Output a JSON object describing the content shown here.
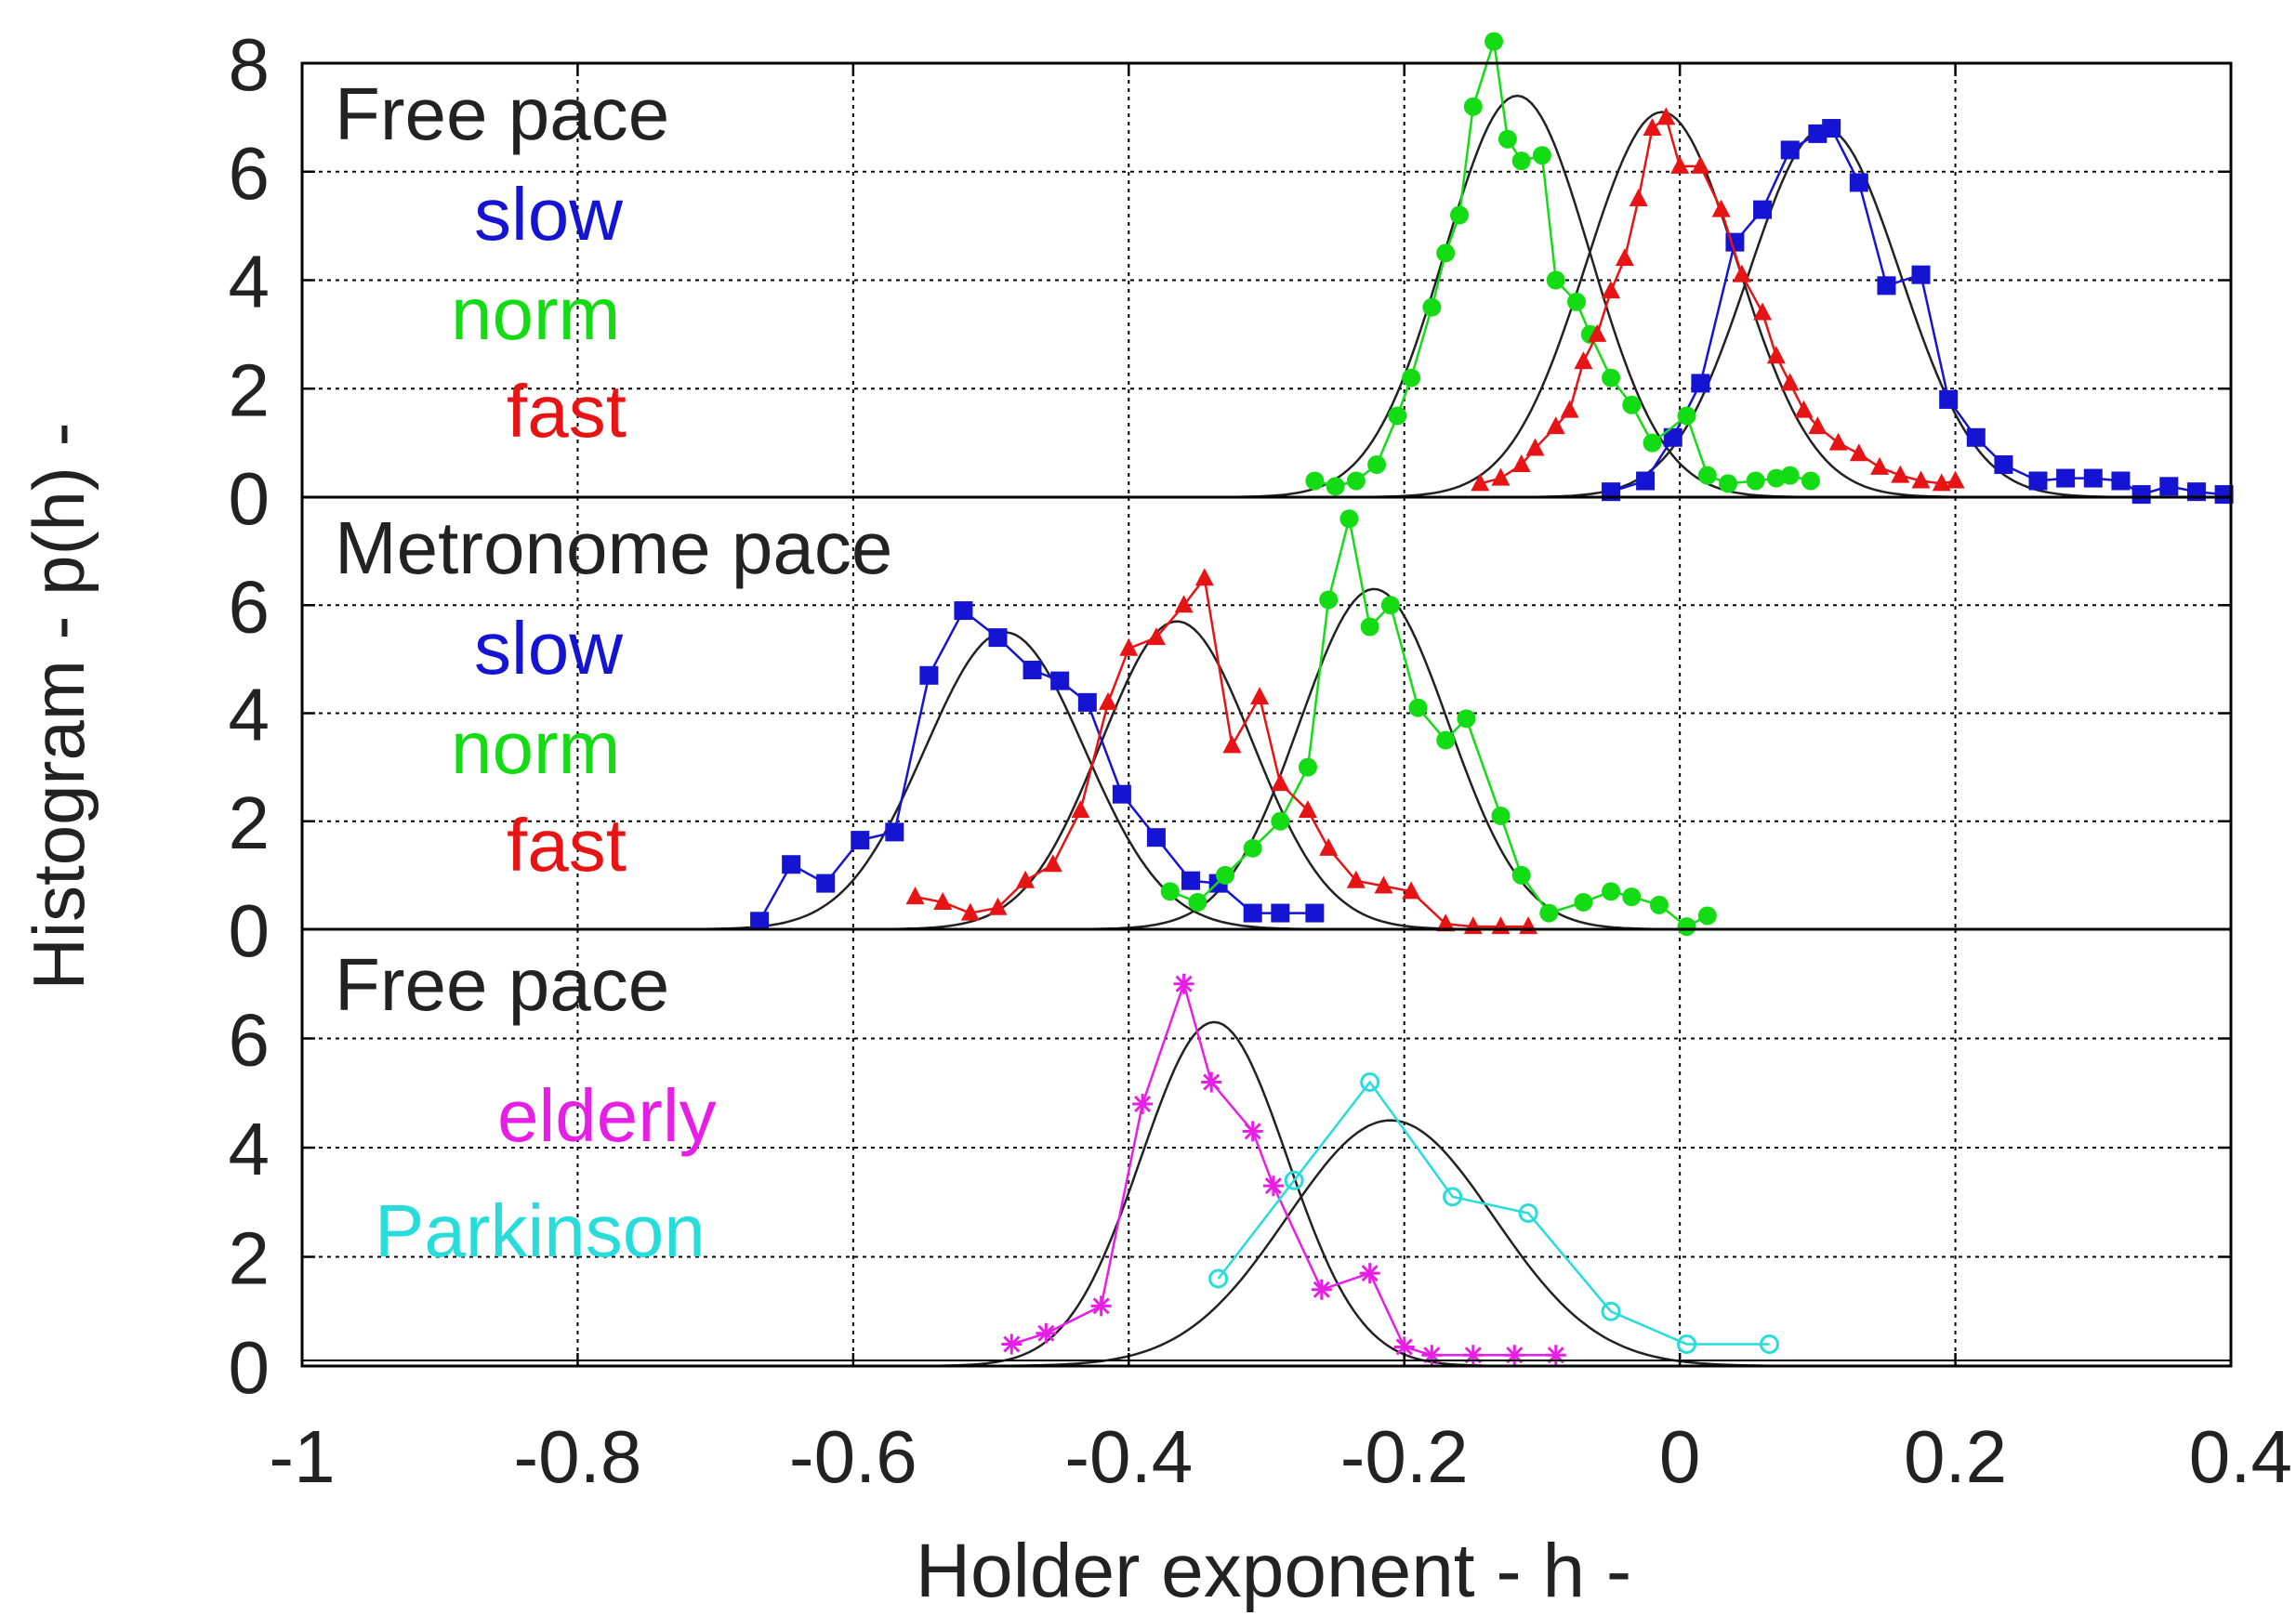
{
  "chart_data": {
    "type": "line",
    "xlabel": "Holder exponent  - h -",
    "ylabel": "Histogram  - p(h) -",
    "xlim": [
      -1,
      0.4
    ],
    "x_ticks": [
      -1,
      -0.8,
      -0.6,
      -0.4,
      -0.2,
      0,
      0.2,
      0.4
    ],
    "x_tick_labels": [
      "-1",
      "-0.8",
      "-0.6",
      "-0.4",
      "-0.2",
      "0",
      "0.2",
      "0.4"
    ],
    "grid": true,
    "panels": [
      {
        "title": "Free pace",
        "ylim": [
          0,
          8
        ],
        "y_ticks": [
          0,
          2,
          4,
          6,
          8
        ],
        "y_tick_labels": [
          "0",
          "2",
          "4",
          "6",
          "8"
        ],
        "legend": [
          {
            "label": "slow",
            "color": "#1414d2"
          },
          {
            "label": "norm",
            "color": "#14dc14"
          },
          {
            "label": "fast",
            "color": "#e61414"
          }
        ],
        "series": [
          {
            "name": "slow",
            "color": "#1414d2",
            "marker": "square",
            "x": [
              -0.05,
              -0.025,
              -0.005,
              0.015,
              0.04,
              0.06,
              0.08,
              0.1,
              0.11,
              0.13,
              0.15,
              0.175,
              0.195,
              0.215,
              0.235,
              0.26,
              0.28,
              0.3,
              0.32,
              0.335,
              0.355,
              0.375,
              0.395
            ],
            "y": [
              0.1,
              0.3,
              1.1,
              2.1,
              4.7,
              5.3,
              6.4,
              6.7,
              6.8,
              5.8,
              3.9,
              4.1,
              1.8,
              1.1,
              0.6,
              0.3,
              0.35,
              0.35,
              0.3,
              0.05,
              0.2,
              0.1,
              0.05
            ]
          },
          {
            "name": "norm",
            "color": "#14dc14",
            "marker": "circle",
            "x": [
              -0.265,
              -0.25,
              -0.235,
              -0.22,
              -0.205,
              -0.195,
              -0.18,
              -0.17,
              -0.16,
              -0.15,
              -0.135,
              -0.125,
              -0.115,
              -0.1,
              -0.09,
              -0.075,
              -0.065,
              -0.05,
              -0.035,
              -0.02,
              0.005,
              0.02,
              0.035,
              0.055,
              0.07,
              0.08,
              0.095
            ],
            "y": [
              0.3,
              0.2,
              0.3,
              0.6,
              1.5,
              2.2,
              3.5,
              4.5,
              5.2,
              7.2,
              8.4,
              6.6,
              6.2,
              6.3,
              4.0,
              3.6,
              3.0,
              2.2,
              1.7,
              1.0,
              1.5,
              0.4,
              0.25,
              0.3,
              0.35,
              0.4,
              0.3
            ]
          },
          {
            "name": "fast",
            "color": "#e61414",
            "marker": "triangle",
            "x": [
              -0.145,
              -0.13,
              -0.115,
              -0.105,
              -0.09,
              -0.08,
              -0.07,
              -0.06,
              -0.05,
              -0.04,
              -0.03,
              -0.02,
              -0.01,
              0.0,
              0.015,
              0.03,
              0.045,
              0.06,
              0.07,
              0.08,
              0.09,
              0.1,
              0.115,
              0.13,
              0.145,
              0.16,
              0.175,
              0.19,
              0.2
            ],
            "y": [
              0.25,
              0.35,
              0.6,
              0.9,
              1.3,
              1.6,
              2.5,
              3.0,
              3.8,
              4.4,
              5.5,
              6.8,
              7.0,
              6.1,
              6.1,
              5.3,
              4.1,
              3.4,
              2.6,
              2.1,
              1.6,
              1.3,
              1.0,
              0.8,
              0.55,
              0.4,
              0.3,
              0.25,
              0.3
            ]
          }
        ],
        "fits": [
          {
            "name": "norm fit",
            "color": "#222222",
            "mu": -0.118,
            "sigma": 0.053,
            "amp": 7.4
          },
          {
            "name": "fast fit",
            "color": "#222222",
            "mu": -0.013,
            "sigma": 0.055,
            "amp": 7.1
          },
          {
            "name": "slow fit",
            "color": "#222222",
            "mu": 0.105,
            "sigma": 0.055,
            "amp": 6.8
          }
        ]
      },
      {
        "title": "Metronome pace",
        "ylim": [
          0,
          8
        ],
        "y_ticks": [
          0,
          2,
          4,
          6
        ],
        "y_tick_labels": [
          "0",
          "2",
          "4",
          "6"
        ],
        "legend": [
          {
            "label": "slow",
            "color": "#1414d2"
          },
          {
            "label": "norm",
            "color": "#14dc14"
          },
          {
            "label": "fast",
            "color": "#e61414"
          }
        ],
        "series": [
          {
            "name": "slow",
            "color": "#1414d2",
            "marker": "square",
            "x": [
              -0.668,
              -0.645,
              -0.62,
              -0.595,
              -0.57,
              -0.545,
              -0.52,
              -0.495,
              -0.47,
              -0.45,
              -0.43,
              -0.405,
              -0.38,
              -0.355,
              -0.335,
              -0.31,
              -0.29,
              -0.265
            ],
            "y": [
              0.15,
              1.2,
              0.85,
              1.65,
              1.8,
              4.7,
              5.9,
              5.4,
              4.8,
              4.6,
              4.2,
              2.5,
              1.7,
              0.9,
              0.85,
              0.3,
              0.3,
              0.3
            ]
          },
          {
            "name": "norm",
            "color": "#14dc14",
            "marker": "circle",
            "x": [
              -0.37,
              -0.35,
              -0.33,
              -0.31,
              -0.29,
              -0.27,
              -0.255,
              -0.24,
              -0.225,
              -0.21,
              -0.19,
              -0.17,
              -0.155,
              -0.13,
              -0.115,
              -0.095,
              -0.07,
              -0.05,
              -0.035,
              -0.015,
              0.005,
              0.02
            ],
            "y": [
              0.7,
              0.5,
              1.0,
              1.5,
              2.0,
              3.0,
              6.1,
              7.6,
              5.6,
              6.0,
              4.1,
              3.5,
              3.9,
              2.1,
              1.0,
              0.3,
              0.5,
              0.7,
              0.6,
              0.45,
              0.05,
              0.25
            ]
          },
          {
            "name": "fast",
            "color": "#e61414",
            "marker": "triangle",
            "x": [
              -0.555,
              -0.535,
              -0.515,
              -0.495,
              -0.475,
              -0.455,
              -0.435,
              -0.415,
              -0.4,
              -0.38,
              -0.36,
              -0.345,
              -0.325,
              -0.305,
              -0.29,
              -0.27,
              -0.255,
              -0.235,
              -0.215,
              -0.195,
              -0.17,
              -0.15,
              -0.13,
              -0.11
            ],
            "y": [
              0.6,
              0.5,
              0.3,
              0.4,
              0.9,
              1.2,
              2.2,
              4.2,
              5.2,
              5.4,
              6.0,
              6.5,
              3.4,
              4.3,
              2.7,
              2.2,
              1.5,
              0.9,
              0.8,
              0.7,
              0.1,
              0.05,
              0.05,
              0.05
            ]
          }
        ],
        "fits": [
          {
            "name": "slow fit",
            "color": "#222222",
            "mu": -0.49,
            "sigma": 0.058,
            "amp": 5.5
          },
          {
            "name": "fast fit",
            "color": "#222222",
            "mu": -0.365,
            "sigma": 0.055,
            "amp": 5.7
          },
          {
            "name": "norm fit",
            "color": "#222222",
            "mu": -0.222,
            "sigma": 0.054,
            "amp": 6.3
          }
        ]
      },
      {
        "title": "Free pace",
        "ylim": [
          0,
          8
        ],
        "y_ticks": [
          0,
          2,
          4,
          6
        ],
        "y_tick_labels": [
          "0",
          "2",
          "4",
          "6"
        ],
        "legend": [
          {
            "label": "elderly",
            "color": "#e61ee6"
          },
          {
            "label": "Parkinson",
            "color": "#28dcdc"
          }
        ],
        "series": [
          {
            "name": "elderly",
            "color": "#e61ee6",
            "marker": "star",
            "x": [
              -0.485,
              -0.46,
              -0.42,
              -0.39,
              -0.36,
              -0.34,
              -0.31,
              -0.295,
              -0.26,
              -0.225,
              -0.2,
              -0.18,
              -0.15,
              -0.12,
              -0.09
            ],
            "y": [
              0.4,
              0.6,
              1.1,
              4.8,
              7.0,
              5.2,
              4.3,
              3.3,
              1.4,
              1.7,
              0.35,
              0.2,
              0.2,
              0.2,
              0.2
            ],
            "draw_order": [
              0,
              1,
              2,
              3,
              4,
              5,
              6,
              7,
              8,
              9,
              10,
              11,
              12,
              13,
              14
            ]
          },
          {
            "name": "Parkinson",
            "color": "#28dcdc",
            "marker": "open-circle",
            "x": [
              -0.335,
              -0.28,
              -0.225,
              -0.165,
              -0.11,
              -0.05,
              0.005,
              0.065
            ],
            "y": [
              1.6,
              3.4,
              5.2,
              3.1,
              2.8,
              1.0,
              0.4,
              0.4
            ]
          }
        ],
        "fits": [
          {
            "name": "elderly fit",
            "color": "#222222",
            "mu": -0.338,
            "sigma": 0.053,
            "amp": 6.3
          },
          {
            "name": "Parkinson fit",
            "color": "#222222",
            "mu": -0.21,
            "sigma": 0.075,
            "amp": 4.5
          }
        ]
      }
    ]
  }
}
